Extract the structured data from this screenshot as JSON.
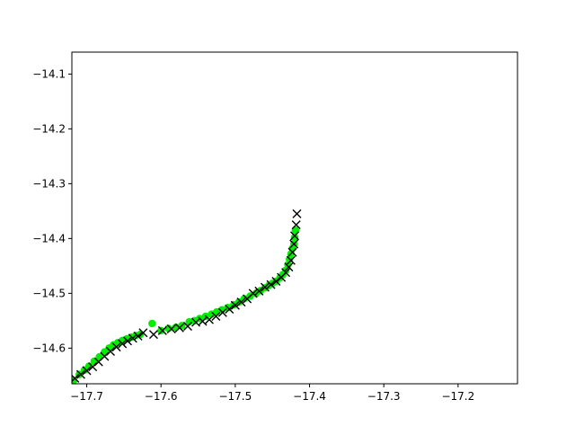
{
  "chart_data": {
    "type": "scatter",
    "title": "",
    "xlabel": "",
    "ylabel": "",
    "xlim": [
      -17.72,
      -17.12
    ],
    "ylim": [
      -14.665,
      -14.06
    ],
    "grid": false,
    "x_ticks": [
      -17.7,
      -17.6,
      -17.5,
      -17.4,
      -17.3,
      -17.2
    ],
    "x_tick_labels": [
      "−17.7",
      "−17.6",
      "−17.5",
      "−17.4",
      "−17.3",
      "−17.2"
    ],
    "y_ticks": [
      -14.1,
      -14.2,
      -14.3,
      -14.4,
      -14.5,
      -14.6
    ],
    "y_tick_labels": [
      "−14.1",
      "−14.2",
      "−14.3",
      "−14.4",
      "−14.5",
      "−14.6"
    ],
    "series": [
      {
        "marker": "circle",
        "color": "#00ee00",
        "x": [
          -17.718,
          -17.71,
          -17.703,
          -17.697,
          -17.69,
          -17.683,
          -17.676,
          -17.67,
          -17.664,
          -17.658,
          -17.652,
          -17.646,
          -17.64,
          -17.634,
          -17.628,
          -17.612,
          -17.6,
          -17.59,
          -17.58,
          -17.572,
          -17.562,
          -17.555,
          -17.548,
          -17.54,
          -17.532,
          -17.525,
          -17.518,
          -17.51,
          -17.502,
          -17.495,
          -17.488,
          -17.48,
          -17.472,
          -17.466,
          -17.46,
          -17.455,
          -17.45,
          -17.445,
          -17.44,
          -17.436,
          -17.432,
          -17.429,
          -17.427,
          -17.425,
          -17.423,
          -17.421,
          -17.42,
          -17.419
        ],
        "y": [
          -14.66,
          -14.648,
          -14.64,
          -14.633,
          -14.624,
          -14.616,
          -14.607,
          -14.6,
          -14.594,
          -14.59,
          -14.586,
          -14.583,
          -14.58,
          -14.577,
          -14.575,
          -14.555,
          -14.568,
          -14.564,
          -14.562,
          -14.559,
          -14.552,
          -14.55,
          -14.546,
          -14.542,
          -14.538,
          -14.534,
          -14.53,
          -14.526,
          -14.521,
          -14.516,
          -14.51,
          -14.505,
          -14.5,
          -14.495,
          -14.49,
          -14.486,
          -14.482,
          -14.478,
          -14.472,
          -14.466,
          -14.458,
          -14.448,
          -14.438,
          -14.428,
          -14.418,
          -14.41,
          -14.398,
          -14.385
        ]
      },
      {
        "marker": "x",
        "color": "#000000",
        "x": [
          -17.716,
          -17.708,
          -17.7,
          -17.692,
          -17.684,
          -17.676,
          -17.668,
          -17.66,
          -17.652,
          -17.645,
          -17.638,
          -17.631,
          -17.624,
          -17.61,
          -17.598,
          -17.586,
          -17.575,
          -17.564,
          -17.553,
          -17.544,
          -17.535,
          -17.526,
          -17.517,
          -17.508,
          -17.5,
          -17.492,
          -17.484,
          -17.476,
          -17.468,
          -17.46,
          -17.452,
          -17.445,
          -17.438,
          -17.432,
          -17.428,
          -17.425,
          -17.423,
          -17.421,
          -17.42,
          -17.418,
          -17.417
        ],
        "y": [
          -14.655,
          -14.648,
          -14.641,
          -14.634,
          -14.625,
          -14.615,
          -14.606,
          -14.598,
          -14.592,
          -14.587,
          -14.582,
          -14.578,
          -14.572,
          -14.575,
          -14.568,
          -14.565,
          -14.563,
          -14.56,
          -14.553,
          -14.551,
          -14.548,
          -14.542,
          -14.535,
          -14.529,
          -14.522,
          -14.516,
          -14.51,
          -14.5,
          -14.496,
          -14.489,
          -14.484,
          -14.478,
          -14.471,
          -14.462,
          -14.452,
          -14.44,
          -14.425,
          -14.41,
          -14.395,
          -14.375,
          -14.355
        ]
      }
    ]
  }
}
